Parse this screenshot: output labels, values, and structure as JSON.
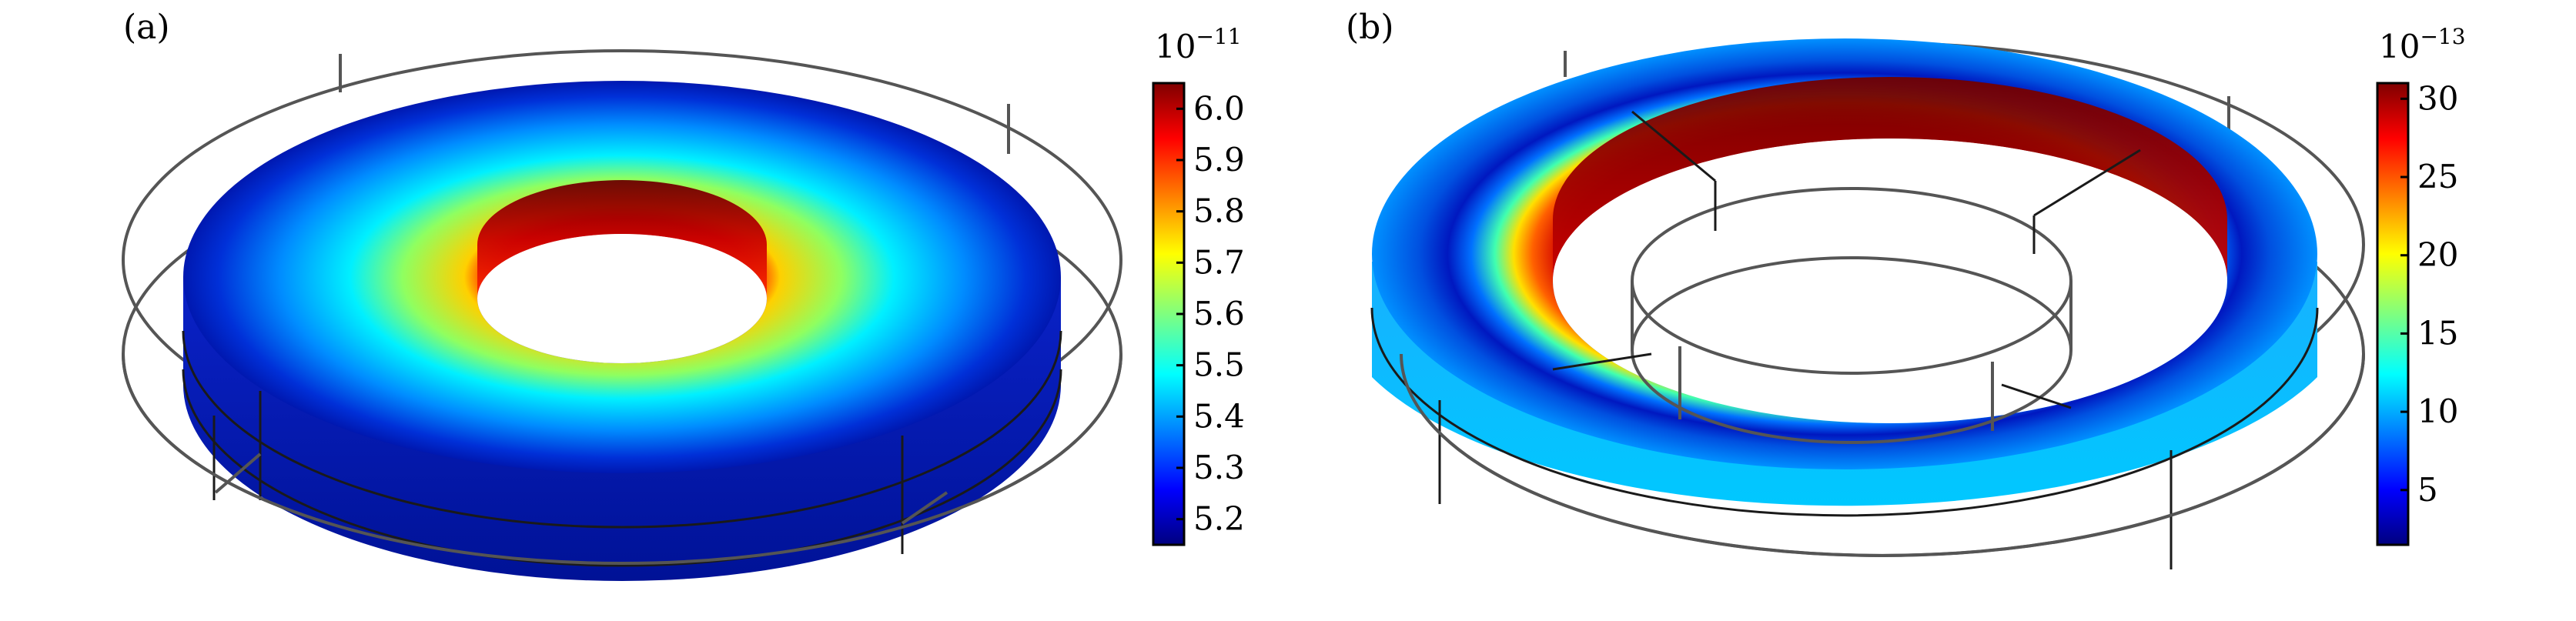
{
  "panels": [
    {
      "label": "(a)",
      "colorbar": {
        "exponent_base": "10",
        "exponent": "−11",
        "min": 5.15,
        "max": 6.05,
        "ticks": [
          {
            "label": "6.0",
            "value": 6.0
          },
          {
            "label": "5.9",
            "value": 5.9
          },
          {
            "label": "5.8",
            "value": 5.8
          },
          {
            "label": "5.7",
            "value": 5.7
          },
          {
            "label": "5.6",
            "value": 5.6
          },
          {
            "label": "5.5",
            "value": 5.5
          },
          {
            "label": "5.4",
            "value": 5.4
          },
          {
            "label": "5.3",
            "value": 5.3
          },
          {
            "label": "5.2",
            "value": 5.2
          }
        ]
      }
    },
    {
      "label": "(b)",
      "colorbar": {
        "exponent_base": "10",
        "exponent": "−13",
        "min": 1.5,
        "max": 31,
        "ticks": [
          {
            "label": "30",
            "value": 30
          },
          {
            "label": "25",
            "value": 25
          },
          {
            "label": "20",
            "value": 20
          },
          {
            "label": "15",
            "value": 15
          },
          {
            "label": "10",
            "value": 10
          },
          {
            "label": "5",
            "value": 5
          }
        ]
      }
    }
  ],
  "colormap": "jet"
}
